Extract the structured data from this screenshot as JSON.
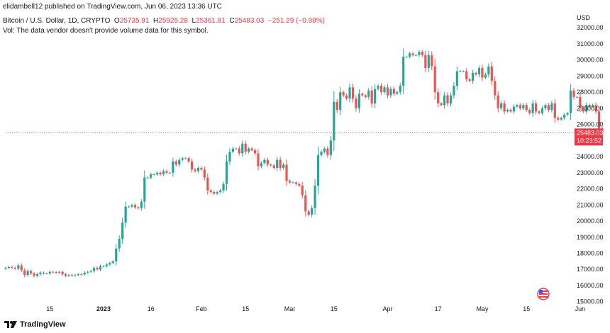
{
  "header": {
    "publish_info": "elidambell12 published on TradingView.com, Jun 06, 2023 13:36 UTC",
    "symbol": "Bitcoin / U.S. Dollar, 1D, CRYPTO",
    "o_label": "O",
    "o_value": "25735.91",
    "h_label": "H",
    "h_value": "25925.28",
    "l_label": "L",
    "l_value": "25361.81",
    "c_label": "C",
    "c_value": "25483.03",
    "change": "−251.29 (−0.98%)",
    "vol_note": "Vol: The data vendor doesn't provide volume data for this symbol."
  },
  "footer": {
    "brand": "TradingView"
  },
  "colors": {
    "up": "#26a69a",
    "down": "#ef5350",
    "last_price_bg": "#f23645"
  },
  "chart_data": {
    "type": "candlestick",
    "currency": "USD",
    "y_ticks": [
      15000,
      16000,
      17000,
      18000,
      19000,
      20000,
      21000,
      22000,
      23000,
      24000,
      25000,
      26000,
      27000,
      28000,
      29000,
      30000,
      31000,
      32000
    ],
    "ylim": [
      14900,
      32400
    ],
    "x_ticks": [
      "15",
      "2023",
      "16",
      "Feb",
      "15",
      "Mar",
      "15",
      "Apr",
      "17",
      "May",
      "15",
      "Jun",
      "15"
    ],
    "last_price": "25483.03",
    "countdown": "10:23:52",
    "grid": false,
    "closes": [
      17100,
      17150,
      17100,
      17050,
      17250,
      16950,
      16650,
      16900,
      16750,
      16600,
      16700,
      16800,
      16750,
      16750,
      16850,
      16830,
      16800,
      16850,
      16700,
      16600,
      16650,
      16620,
      16650,
      16700,
      16690,
      16800,
      16850,
      16900,
      17100,
      17000,
      17200,
      17200,
      17300,
      17400,
      17500,
      18300,
      18900,
      19900,
      20900,
      20900,
      21000,
      20850,
      20800,
      21200,
      22700,
      22700,
      22900,
      22900,
      23000,
      22900,
      23100,
      23000,
      23000,
      23700,
      23500,
      23800,
      23900,
      23900,
      23700,
      23200,
      23100,
      23300,
      23200,
      22700,
      21900,
      21800,
      21700,
      21800,
      21900,
      22300,
      23700,
      24300,
      24500,
      24500,
      24200,
      24800,
      24300,
      24500,
      24400,
      24200,
      23400,
      23600,
      23800,
      23500,
      23450,
      23300,
      23800,
      23300,
      23500,
      22500,
      22400,
      22400,
      22300,
      22200,
      21600,
      20600,
      20400,
      20800,
      22200,
      24100,
      24300,
      24500,
      24100,
      25000,
      27400,
      26900,
      28000,
      27800,
      27600,
      28300,
      27600,
      27000,
      27900,
      27800,
      27700,
      28100,
      27300,
      28200,
      28400,
      28000,
      28300,
      27800,
      28200,
      27900,
      28000,
      28400,
      30200,
      30200,
      30400,
      30300,
      30300,
      30500,
      30300,
      29500,
      30300,
      29600,
      28000,
      27300,
      27200,
      27800,
      27300,
      27800,
      28400,
      29300,
      29300,
      29300,
      28800,
      28700,
      29200,
      29100,
      29500,
      28900,
      29100,
      29600,
      28700,
      27800,
      27000,
      27300,
      26800,
      26900,
      26800,
      27100,
      27200,
      27000,
      27200,
      26900,
      26700,
      27300,
      26800,
      26700,
      27000,
      27200,
      26900,
      27300,
      26400,
      26300,
      26400,
      26600,
      26700,
      28100,
      27700,
      27700,
      27000,
      26800,
      27200,
      27100,
      27200,
      26800,
      25750,
      25483.03
    ]
  }
}
